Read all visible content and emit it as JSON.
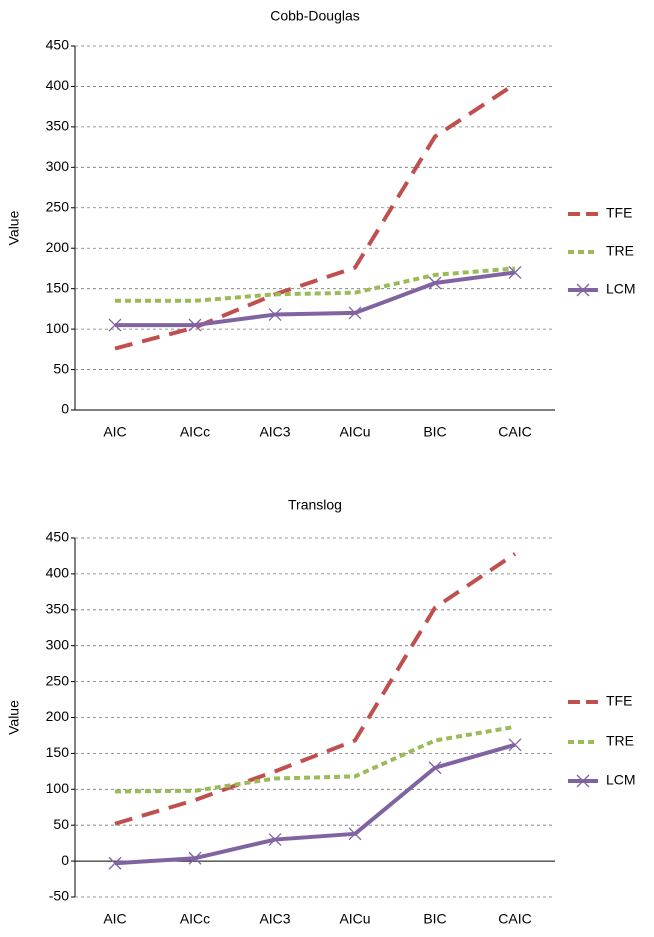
{
  "chart_data": [
    {
      "type": "line",
      "title": "Cobb-Douglas",
      "y_label": "Value",
      "categories": [
        "AIC",
        "AICc",
        "AIC3",
        "AICu",
        "BIC",
        "CAIC"
      ],
      "series": [
        {
          "name": "TFE",
          "color": "#c0504d",
          "line_style": "dashed",
          "values": [
            76,
            102,
            143,
            176,
            338,
            403
          ]
        },
        {
          "name": "TRE",
          "color": "#9bbb59",
          "line_style": "dotted",
          "values": [
            135,
            135,
            143,
            145,
            167,
            175
          ]
        },
        {
          "name": "LCM",
          "color": "#8064a2",
          "line_style": "solid",
          "marker": "x",
          "values": [
            105,
            105,
            118,
            120,
            157,
            170
          ]
        }
      ],
      "ylim": [
        0,
        450
      ],
      "yticks": [
        0,
        50,
        100,
        150,
        200,
        250,
        300,
        350,
        400,
        450
      ],
      "grid": true,
      "legend": "right"
    },
    {
      "type": "line",
      "title": "Translog",
      "y_label": "Value",
      "categories": [
        "AIC",
        "AICc",
        "AIC3",
        "AICu",
        "BIC",
        "CAIC"
      ],
      "series": [
        {
          "name": "TFE",
          "color": "#c0504d",
          "line_style": "dashed",
          "values": [
            52,
            85,
            125,
            168,
            353,
            428
          ]
        },
        {
          "name": "TRE",
          "color": "#9bbb59",
          "line_style": "dotted",
          "values": [
            97,
            98,
            115,
            118,
            168,
            187
          ]
        },
        {
          "name": "LCM",
          "color": "#8064a2",
          "line_style": "solid",
          "marker": "x",
          "values": [
            -3,
            4,
            30,
            38,
            130,
            162
          ]
        }
      ],
      "ylim": [
        -50,
        450
      ],
      "yticks": [
        -50,
        0,
        50,
        100,
        150,
        200,
        250,
        300,
        350,
        400,
        450
      ],
      "grid": true,
      "legend": "right"
    }
  ]
}
